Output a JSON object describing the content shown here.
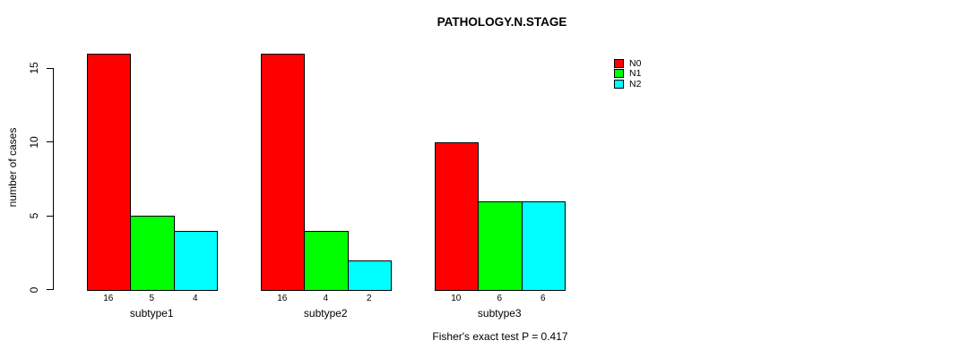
{
  "title": "PATHOLOGY.N.STAGE",
  "footer": "Fisher's exact test P = 0.417",
  "chart_data": {
    "type": "bar",
    "title": "PATHOLOGY.N.STAGE",
    "xlabel": "",
    "ylabel": "number of cases",
    "categories": [
      "subtype1",
      "subtype2",
      "subtype3"
    ],
    "series": [
      {
        "name": "N0",
        "color": "#ff0000",
        "values": [
          16,
          16,
          10
        ]
      },
      {
        "name": "N1",
        "color": "#00ff00",
        "values": [
          5,
          4,
          6
        ]
      },
      {
        "name": "N2",
        "color": "#00ffff",
        "values": [
          4,
          2,
          6
        ]
      }
    ],
    "bar_value_labels": [
      [
        "16",
        "5",
        "4"
      ],
      [
        "16",
        "4",
        "2"
      ],
      [
        "10",
        "6",
        "6"
      ]
    ],
    "yticks": [
      0,
      5,
      10,
      15
    ],
    "ylim": [
      0,
      16.6
    ],
    "grid": false,
    "legend_position": "right-outside",
    "annotation": "Fisher's exact test P = 0.417",
    "background": "#ffffff",
    "bar_border_color": "#000000"
  }
}
